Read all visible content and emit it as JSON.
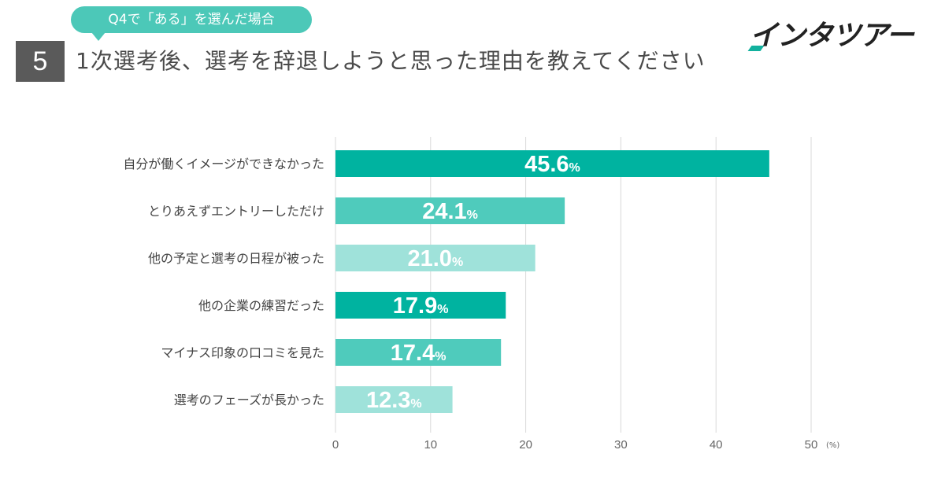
{
  "header": {
    "condition_label": "Q4で「ある」を選んだ場合",
    "question_number": "5",
    "question_title": "1次選考後、選考を辞退しようと思った理由を教えてください",
    "logo_text": "インタツアー"
  },
  "colors": {
    "accent": "#4cc8b8",
    "number_box": "#5a5a5a",
    "logo_mark": "#12b19e",
    "bar_dark": "#00b3a0",
    "bar_mid": "#4fcbbc",
    "bar_light": "#9fe2da"
  },
  "chart_data": {
    "type": "bar",
    "orientation": "horizontal",
    "title": "1次選考後、選考を辞退しようと思った理由を教えてください",
    "unit_label": "(%)",
    "value_suffix": "%",
    "xlim": [
      0,
      50
    ],
    "ticks": [
      0,
      10,
      20,
      30,
      40,
      50
    ],
    "grid": true,
    "categories": [
      "自分が働くイメージができなかった",
      "とりあえずエントリーしただけ",
      "他の予定と選考の日程が被った",
      "他の企業の練習だった",
      "マイナス印象の口コミを見た",
      "選考のフェーズが長かった"
    ],
    "values": [
      45.6,
      24.1,
      21.0,
      17.9,
      17.4,
      12.3
    ],
    "bar_colors": [
      "#00b3a0",
      "#4fcbbc",
      "#9fe2da",
      "#00b3a0",
      "#4fcbbc",
      "#9fe2da"
    ]
  }
}
